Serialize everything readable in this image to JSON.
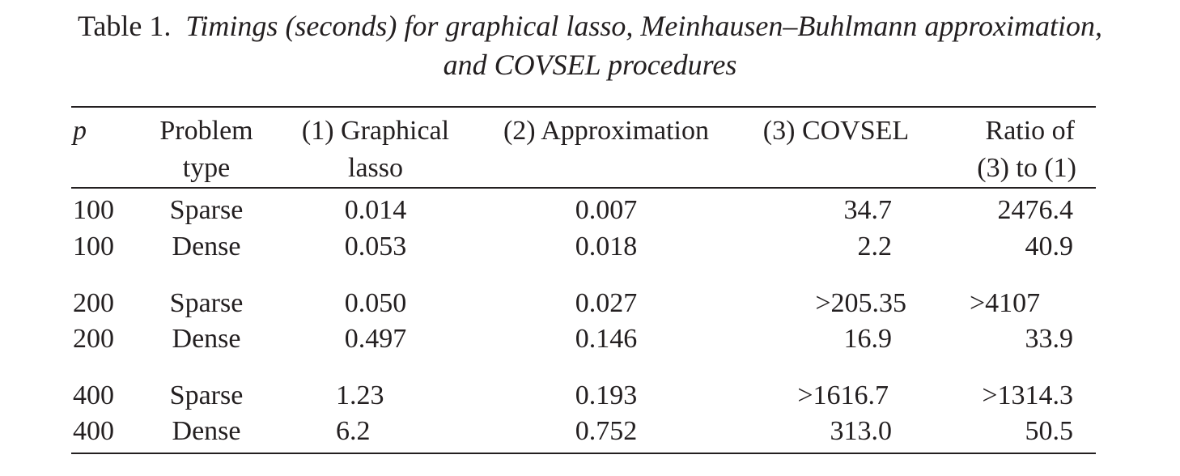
{
  "caption": {
    "label": "Table 1.",
    "title_line1": "Timings (seconds) for graphical lasso, Meinhausen–Buhlmann approximation,",
    "title_line2": "and COVSEL procedures"
  },
  "table": {
    "headers": {
      "p": "p",
      "problem_type_1": "Problem",
      "problem_type_2": "type",
      "graphical_lasso_1": "(1) Graphical",
      "graphical_lasso_2": "lasso",
      "approximation": "(2) Approximation",
      "covsel": "(3) COVSEL",
      "ratio_1": "Ratio of",
      "ratio_2": "(3) to (1)"
    },
    "rows": [
      {
        "p": "100",
        "type": "Sparse",
        "glasso": "0.014",
        "approx": "0.007",
        "covsel": "34.7",
        "ratio": "2476.4"
      },
      {
        "p": "100",
        "type": "Dense",
        "glasso": "0.053",
        "approx": "0.018",
        "covsel": "2.2",
        "ratio": "40.9"
      },
      {
        "p": "200",
        "type": "Sparse",
        "glasso": "0.050",
        "approx": "0.027",
        "covsel": ">205.35",
        "ratio": ">4107"
      },
      {
        "p": "200",
        "type": "Dense",
        "glasso": "0.497",
        "approx": "0.146",
        "covsel": "16.9",
        "ratio": "33.9"
      },
      {
        "p": "400",
        "type": "Sparse",
        "glasso": "1.23",
        "approx": "0.193",
        "covsel": ">1616.7",
        "ratio": ">1314.3"
      },
      {
        "p": "400",
        "type": "Dense",
        "glasso": "6.2",
        "approx": "0.752",
        "covsel": "313.0",
        "ratio": "50.5"
      }
    ]
  }
}
